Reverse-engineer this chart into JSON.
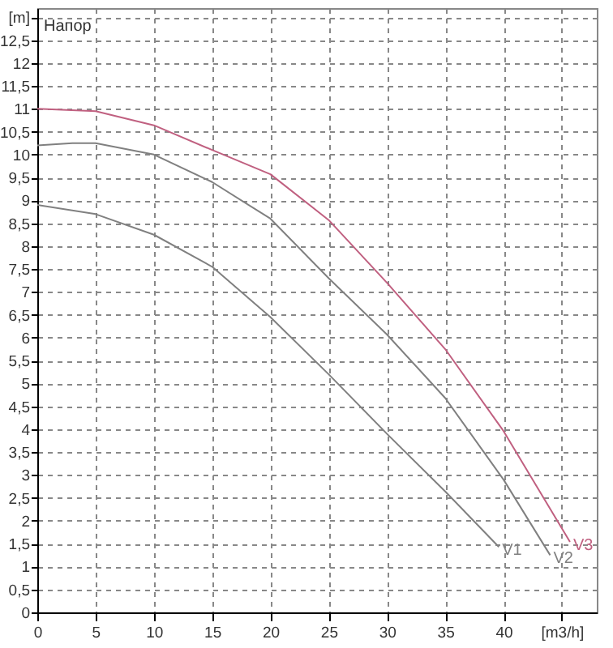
{
  "chart_data": {
    "type": "line",
    "title": "Напор",
    "series": [
      {
        "name": "V1",
        "color": "#808080",
        "x": [
          0,
          5,
          10,
          15,
          20,
          25,
          30,
          35,
          39.6
        ],
        "values": [
          8.9,
          8.7,
          8.25,
          7.55,
          6.45,
          5.2,
          3.9,
          2.64,
          1.43
        ]
      },
      {
        "name": "V2",
        "color": "#808080",
        "x": [
          0,
          3,
          5,
          10,
          15,
          20,
          25,
          30,
          35,
          40,
          44
        ],
        "values": [
          10.2,
          10.25,
          10.25,
          10.0,
          9.4,
          8.6,
          7.3,
          6.07,
          4.68,
          2.9,
          1.25
        ]
      },
      {
        "name": "V3",
        "color": "#c06080",
        "x": [
          0,
          5,
          10,
          15,
          20,
          25,
          30,
          35,
          40,
          45.7
        ],
        "values": [
          11.0,
          10.95,
          10.64,
          10.1,
          9.57,
          8.57,
          7.2,
          5.75,
          3.96,
          1.54
        ]
      }
    ],
    "xlim": [
      0,
      48
    ],
    "ylim": [
      0,
      13.2
    ],
    "xticks": [
      0,
      5,
      10,
      15,
      20,
      25,
      30,
      35,
      40,
      {
        "value": 45,
        "label": "[m3/h]"
      }
    ],
    "yticks": [
      {
        "value": 0,
        "label": "0"
      },
      {
        "value": 0.5,
        "label": "0,5"
      },
      {
        "value": 1,
        "label": "1"
      },
      {
        "value": 1.5,
        "label": "1,5"
      },
      {
        "value": 2,
        "label": "2"
      },
      {
        "value": 2.5,
        "label": "2,5"
      },
      {
        "value": 3,
        "label": "3"
      },
      {
        "value": 3.5,
        "label": "3,5"
      },
      {
        "value": 4,
        "label": "4"
      },
      {
        "value": 4.5,
        "label": "4,5"
      },
      {
        "value": 5,
        "label": "5"
      },
      {
        "value": 5.5,
        "label": "5,5"
      },
      {
        "value": 6,
        "label": "6"
      },
      {
        "value": 6.5,
        "label": "6,5"
      },
      {
        "value": 7,
        "label": "7"
      },
      {
        "value": 7.5,
        "label": "7,5"
      },
      {
        "value": 8,
        "label": "8"
      },
      {
        "value": 8.5,
        "label": "8,5"
      },
      {
        "value": 9,
        "label": "9"
      },
      {
        "value": 9.5,
        "label": "9,5"
      },
      {
        "value": 10,
        "label": "10"
      },
      {
        "value": 10.5,
        "label": "10,5"
      },
      {
        "value": 11,
        "label": "11"
      },
      {
        "value": 11.5,
        "label": "11,5"
      },
      {
        "value": 12,
        "label": "12"
      },
      {
        "value": 12.5,
        "label": "12,5"
      },
      {
        "value": 13,
        "label": "[m]"
      }
    ],
    "grid": true,
    "marker": "none",
    "line_style": "solid"
  }
}
